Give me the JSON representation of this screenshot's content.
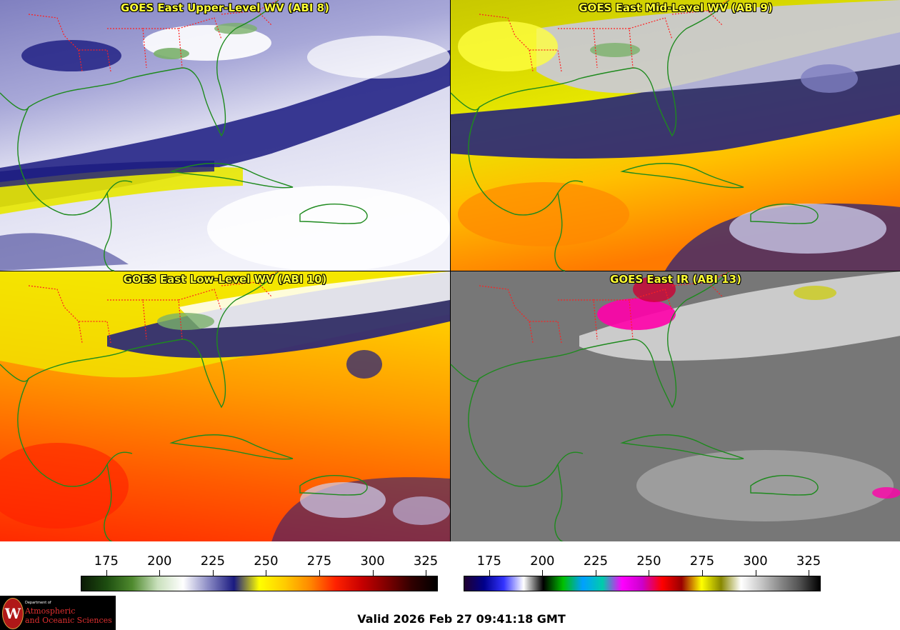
{
  "panels": [
    {
      "title": "GOES East Upper-Level WV (ABI 8)",
      "product": "upper-wv"
    },
    {
      "title": "GOES East Mid-Level WV (ABI 9)",
      "product": "mid-wv"
    },
    {
      "title": "GOES East Low-Level WV (ABI 10)",
      "product": "low-wv"
    },
    {
      "title": "GOES East IR (ABI 13)",
      "product": "ir"
    }
  ],
  "colorbars": [
    {
      "name": "water-vapor",
      "ticks": [
        "175",
        "200",
        "225",
        "250",
        "275",
        "300",
        "325"
      ],
      "tick_values": [
        175,
        200,
        225,
        250,
        275,
        300,
        325
      ],
      "range": [
        163,
        330
      ],
      "colors": [
        "#0b1a05",
        "#1d4d10",
        "#4f8a2e",
        "#c9e0bc",
        "#ffffff",
        "#8a8ac4",
        "#1a1a80",
        "#ffff00",
        "#ffcc00",
        "#ff8800",
        "#ff2200",
        "#c80000",
        "#800000",
        "#300000",
        "#000000"
      ]
    },
    {
      "name": "infrared",
      "ticks": [
        "175",
        "200",
        "225",
        "250",
        "275",
        "300",
        "325"
      ],
      "tick_values": [
        175,
        200,
        225,
        250,
        275,
        300,
        325
      ],
      "range": [
        163,
        330
      ],
      "colors": [
        "#200030",
        "#00008b",
        "#3333ff",
        "#ffffff",
        "#000000",
        "#00c000",
        "#00a0ff",
        "#00ccaa",
        "#ff00ff",
        "#cc00cc",
        "#ff0000",
        "#990000",
        "#ffff00",
        "#888800",
        "#ffffff",
        "#c8c8c8",
        "#888888",
        "#505050",
        "#000000"
      ]
    }
  ],
  "valid_time": "Valid 2026 Feb 27 09:41:18 GMT",
  "logo": {
    "department": "Department of",
    "line1": "Atmospheric",
    "line2": "and Oceanic Sciences",
    "seal_letter": "W"
  },
  "colors": {
    "title": "#ffff33",
    "coastline": "#1e8a1e",
    "state_border": "#ff2020"
  }
}
